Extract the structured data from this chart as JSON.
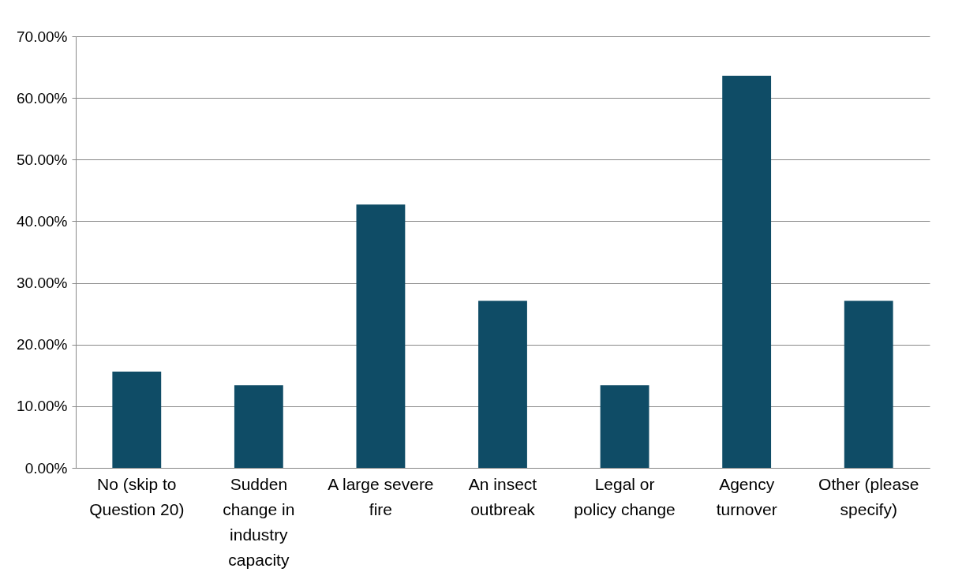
{
  "chart_data": {
    "type": "bar",
    "categories": [
      "No (skip to\nQuestion 20)",
      "Sudden\nchange in\nindustry\ncapacity",
      "A large severe\nfire",
      "An insect\noutbreak",
      "Legal or\npolicy change",
      "Agency\nturnover",
      "Other (please\nspecify)"
    ],
    "values": [
      15.6,
      13.4,
      42.7,
      27.1,
      13.4,
      63.6,
      27.1
    ],
    "color": "#0f4c66",
    "ylim": [
      0,
      70
    ],
    "yticks": [
      {
        "value": 0,
        "label": "0.00%"
      },
      {
        "value": 10,
        "label": "10.00%"
      },
      {
        "value": 20,
        "label": "20.00%"
      },
      {
        "value": 30,
        "label": "30.00%"
      },
      {
        "value": 40,
        "label": "40.00%"
      },
      {
        "value": 50,
        "label": "50.00%"
      },
      {
        "value": 60,
        "label": "60.00%"
      },
      {
        "value": 70,
        "label": "70.00%"
      }
    ],
    "grid": "y"
  }
}
